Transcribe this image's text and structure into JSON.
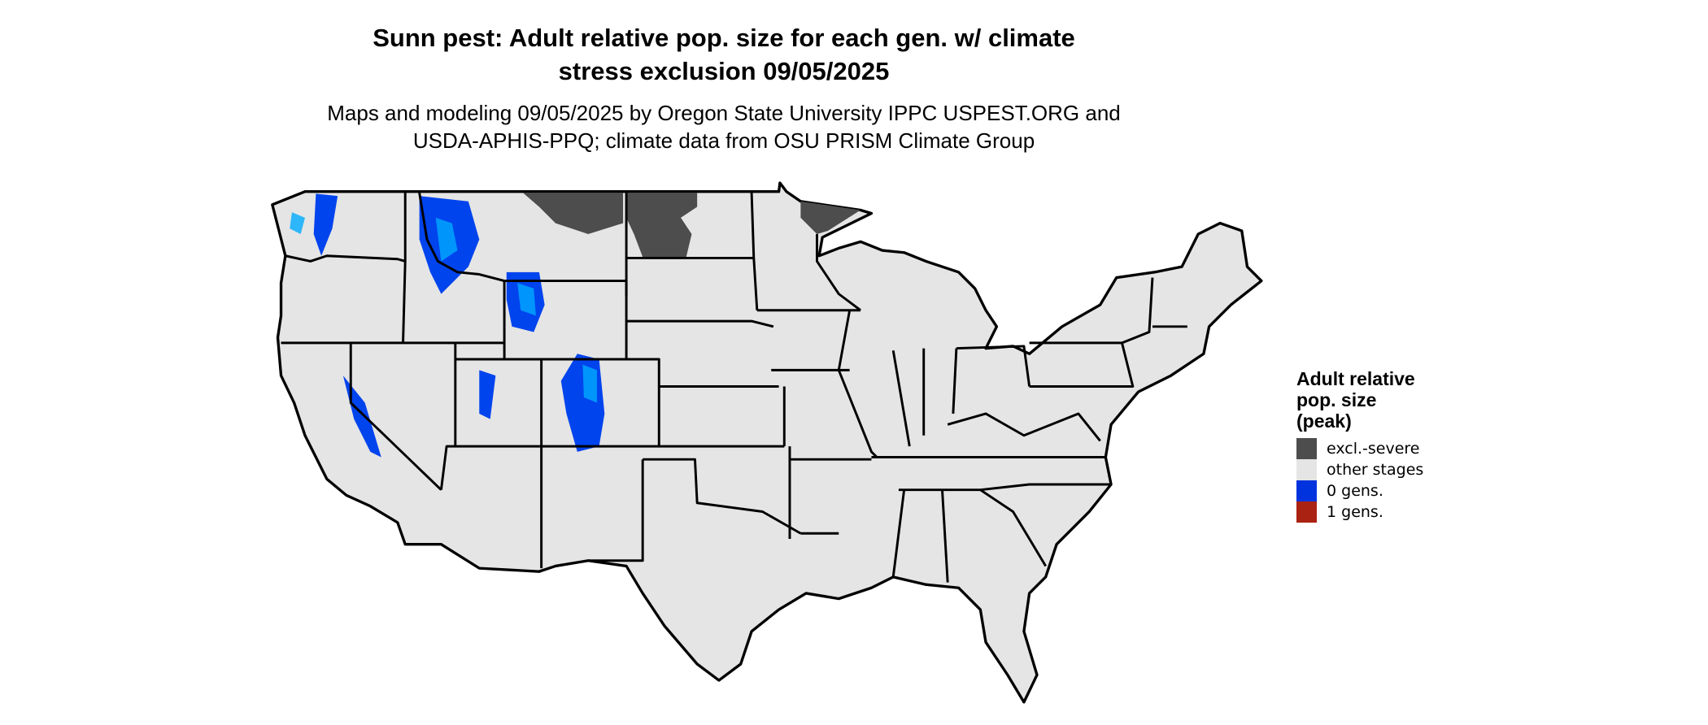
{
  "title": {
    "line1": "Sunn pest: Adult relative pop. size for each gen. w/ climate",
    "line2": "stress exclusion 09/05/2025"
  },
  "subtitle": {
    "line1": "Maps and modeling 09/05/2025 by Oregon State University IPPC USPEST.ORG and",
    "line2": "USDA-APHIS-PPQ; climate data from OSU PRISM Climate Group"
  },
  "legend": {
    "title_lines": [
      "Adult relative",
      "pop. size",
      "(peak)"
    ],
    "items": [
      {
        "label": "excl.-severe",
        "color": "#4d4d4d"
      },
      {
        "label": "other stages",
        "color": "#e5e5e5"
      },
      {
        "label": "0 gens.",
        "color": "#0033dd"
      },
      {
        "label": "1 gens.",
        "color": "#aa2211"
      }
    ]
  },
  "map": {
    "land_color": "#e5e5e5",
    "border_color": "#000000",
    "accent_light_blue": "#00aaff"
  }
}
